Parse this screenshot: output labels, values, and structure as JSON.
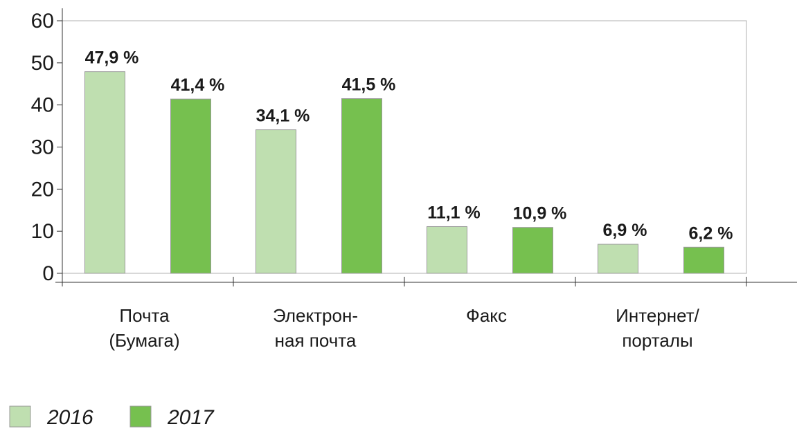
{
  "chart_data": {
    "type": "bar",
    "categories": [
      [
        "Почта",
        "(Бумага)"
      ],
      [
        "Электрон-",
        "ная почта"
      ],
      [
        "Факс"
      ],
      [
        "Интернет/",
        "порталы"
      ]
    ],
    "series": [
      {
        "name": "2016",
        "color": "#bfdfb0",
        "values": [
          47.9,
          34.1,
          11.1,
          6.9
        ],
        "value_labels": [
          "47,9 %",
          "34,1 %",
          "11,1 %",
          "6,9 %"
        ]
      },
      {
        "name": "2017",
        "color": "#76c04f",
        "values": [
          41.4,
          41.5,
          10.9,
          6.2
        ],
        "value_labels": [
          "41,4 %",
          "41,5 %",
          "10,9 %",
          "6,2 %"
        ]
      }
    ],
    "ylim": [
      0,
      60
    ],
    "yticks": [
      0,
      10,
      20,
      30,
      40,
      50,
      60
    ],
    "legend": "bottom-left"
  }
}
